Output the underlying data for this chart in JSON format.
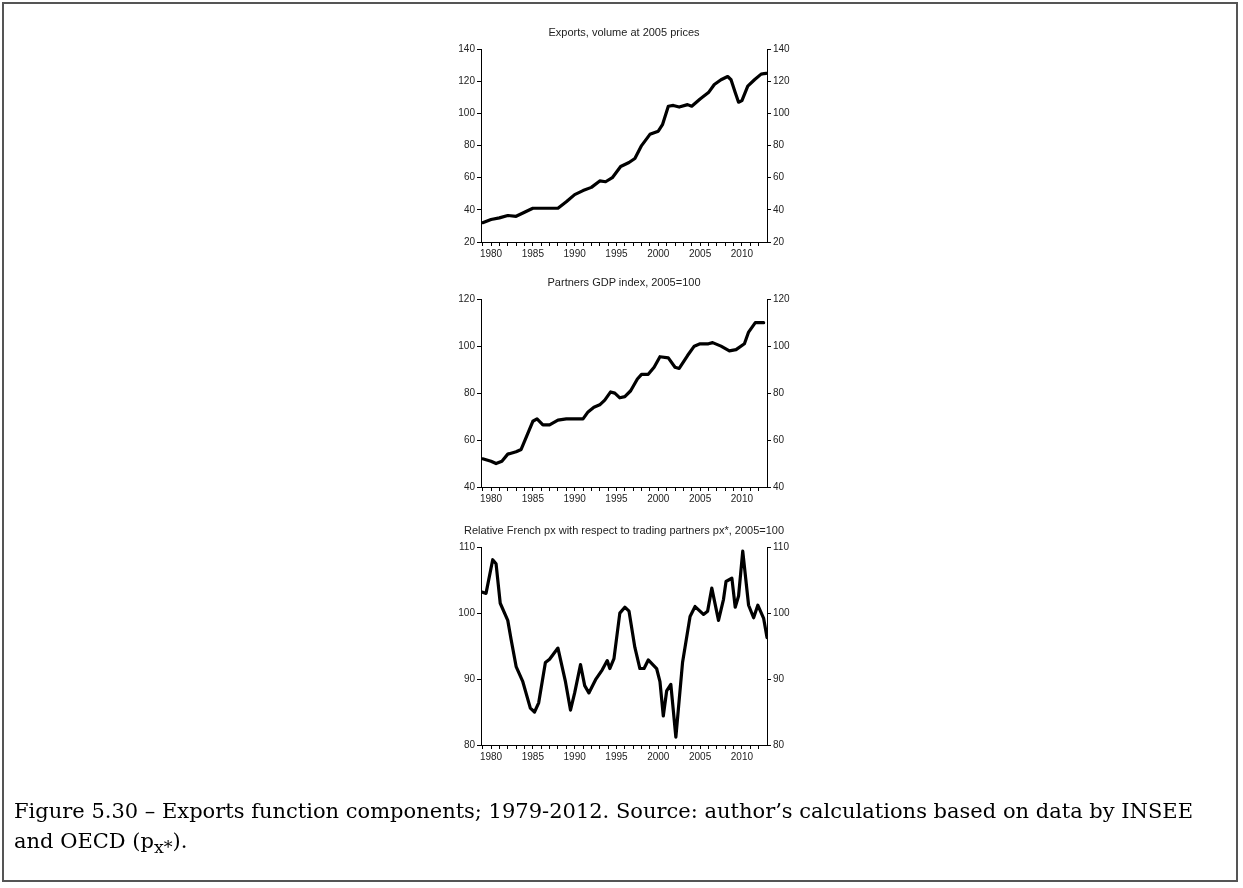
{
  "chart_data": [
    {
      "type": "line",
      "title": "Exports, volume at 2005 prices",
      "x": [
        1979,
        1980,
        1981,
        1982,
        1983,
        1984,
        1985,
        1986,
        1987,
        1988,
        1989,
        1990,
        1991,
        1992,
        1993,
        1993.7,
        1994.5,
        1995.5,
        1996.5,
        1997.2,
        1998,
        1999,
        2000,
        2000.5,
        2001.2,
        2001.8,
        2002.5,
        2003.5,
        2004,
        2005,
        2006,
        2006.7,
        2007.5,
        2008.3,
        2008.7,
        2009.2,
        2009.6,
        2010,
        2010.7,
        2011.5,
        2012.3,
        2012.9
      ],
      "series": [
        {
          "color": "#000000",
          "values": [
            32,
            34,
            35,
            36.5,
            36,
            38.5,
            41,
            41,
            41,
            41,
            45,
            49.5,
            52,
            54,
            58,
            57.5,
            60,
            67,
            69.5,
            72,
            80,
            87,
            89,
            93,
            104.5,
            105,
            104,
            105.5,
            104.5,
            109,
            113,
            118,
            121,
            123,
            121,
            113,
            107,
            108,
            117,
            121,
            124.5,
            125
          ]
        }
      ],
      "xlim": [
        1978.8,
        2013
      ],
      "xticks": [
        {
          "value": 1979,
          "label": null
        },
        1980,
        {
          "value": 1981,
          "label": null
        },
        {
          "value": 1982,
          "label": null
        },
        {
          "value": 1983,
          "label": null
        },
        {
          "value": 1984,
          "label": null
        },
        1985,
        {
          "value": 1986,
          "label": null
        },
        {
          "value": 1987,
          "label": null
        },
        {
          "value": 1988,
          "label": null
        },
        {
          "value": 1989,
          "label": null
        },
        1990,
        {
          "value": 1991,
          "label": null
        },
        {
          "value": 1992,
          "label": null
        },
        {
          "value": 1993,
          "label": null
        },
        {
          "value": 1994,
          "label": null
        },
        1995,
        {
          "value": 1996,
          "label": null
        },
        {
          "value": 1997,
          "label": null
        },
        {
          "value": 1998,
          "label": null
        },
        {
          "value": 1999,
          "label": null
        },
        2000,
        {
          "value": 2001,
          "label": null
        },
        {
          "value": 2002,
          "label": null
        },
        {
          "value": 2003,
          "label": null
        },
        {
          "value": 2004,
          "label": null
        },
        2005,
        {
          "value": 2006,
          "label": null
        },
        {
          "value": 2007,
          "label": null
        },
        {
          "value": 2008,
          "label": null
        },
        {
          "value": 2009,
          "label": null
        },
        2010,
        {
          "value": 2011,
          "label": null
        },
        {
          "value": 2012,
          "label": null
        }
      ],
      "ylim": [
        20,
        140
      ],
      "yticks": [
        20,
        40,
        60,
        80,
        100,
        120,
        140
      ],
      "y2lim": [
        20,
        140
      ],
      "y2ticks": [
        20,
        40,
        60,
        80,
        100,
        120,
        140
      ],
      "grid": false
    },
    {
      "type": "line",
      "title": "Partners GDP index, 2005=100",
      "x": [
        1979,
        1980,
        1980.6,
        1981.3,
        1982,
        1983,
        1983.6,
        1984.3,
        1985,
        1985.5,
        1986.2,
        1987,
        1988,
        1989,
        1990,
        1991,
        1991.6,
        1992.3,
        1993,
        1993.6,
        1994.3,
        1994.8,
        1995.4,
        1996,
        1996.7,
        1997.5,
        1998,
        1998.8,
        1999.5,
        2000.2,
        2001.2,
        2002,
        2002.5,
        2003.5,
        2004.3,
        2005,
        2006,
        2006.5,
        2007.5,
        2008.5,
        2009.3,
        2010.3,
        2010.8,
        2011.6,
        2012.6
      ],
      "series": [
        {
          "color": "#000000",
          "values": [
            52,
            51,
            50,
            51,
            54,
            55,
            56,
            62,
            68,
            69,
            66.5,
            66.5,
            68.5,
            69,
            69,
            69,
            72,
            74,
            75,
            77,
            80.5,
            80,
            78,
            78.5,
            81,
            86,
            88,
            88,
            91,
            95.5,
            95,
            91,
            90.5,
            96,
            100,
            101,
            101,
            101.5,
            100,
            98,
            98.5,
            101,
            106,
            110,
            110
          ]
        }
      ],
      "xlim": [
        1978.8,
        2013
      ],
      "xticks": [
        {
          "value": 1979,
          "label": null
        },
        1980,
        {
          "value": 1981,
          "label": null
        },
        {
          "value": 1982,
          "label": null
        },
        {
          "value": 1983,
          "label": null
        },
        {
          "value": 1984,
          "label": null
        },
        1985,
        {
          "value": 1986,
          "label": null
        },
        {
          "value": 1987,
          "label": null
        },
        {
          "value": 1988,
          "label": null
        },
        {
          "value": 1989,
          "label": null
        },
        1990,
        {
          "value": 1991,
          "label": null
        },
        {
          "value": 1992,
          "label": null
        },
        {
          "value": 1993,
          "label": null
        },
        {
          "value": 1994,
          "label": null
        },
        1995,
        {
          "value": 1996,
          "label": null
        },
        {
          "value": 1997,
          "label": null
        },
        {
          "value": 1998,
          "label": null
        },
        {
          "value": 1999,
          "label": null
        },
        2000,
        {
          "value": 2001,
          "label": null
        },
        {
          "value": 2002,
          "label": null
        },
        {
          "value": 2003,
          "label": null
        },
        {
          "value": 2004,
          "label": null
        },
        2005,
        {
          "value": 2006,
          "label": null
        },
        {
          "value": 2007,
          "label": null
        },
        {
          "value": 2008,
          "label": null
        },
        {
          "value": 2009,
          "label": null
        },
        2010,
        {
          "value": 2011,
          "label": null
        },
        {
          "value": 2012,
          "label": null
        }
      ],
      "ylim": [
        40,
        120
      ],
      "yticks": [
        40,
        60,
        80,
        100,
        120
      ],
      "y2lim": [
        40,
        120
      ],
      "y2ticks": [
        40,
        60,
        80,
        100,
        120
      ],
      "grid": false
    },
    {
      "type": "line",
      "title": "Relative French px with respect to trading partners px*, 2005=100",
      "x": [
        1978.9,
        1979.4,
        1980.2,
        1980.6,
        1981.1,
        1982,
        1982.4,
        1983,
        1983.8,
        1984.7,
        1985.2,
        1985.7,
        1986.5,
        1987,
        1988,
        1988.9,
        1989.5,
        1990,
        1990.7,
        1991.2,
        1991.7,
        1992.5,
        1993.3,
        1993.9,
        1994.2,
        1994.7,
        1995.4,
        1996,
        1996.5,
        1997.2,
        1997.8,
        1998.3,
        1998.8,
        1999.8,
        2000.2,
        2000.6,
        2001,
        2001.5,
        2002.1,
        2002.9,
        2003.8,
        2004.4,
        2005.4,
        2005.9,
        2006.4,
        2007.2,
        2007.8,
        2008.1,
        2008.8,
        2009.2,
        2009.6,
        2010.1,
        2010.8,
        2011.4,
        2011.9,
        2012.6,
        2013
      ],
      "series": [
        {
          "color": "#000000",
          "values": [
            103.2,
            103,
            108.1,
            107.5,
            101.5,
            98.9,
            96,
            91.9,
            89.6,
            85.6,
            85,
            86.4,
            92.5,
            93,
            94.7,
            89.6,
            85.3,
            87.9,
            92.2,
            89,
            87.9,
            89.9,
            91.4,
            92.8,
            91.6,
            93.1,
            100,
            100.9,
            100.3,
            94.8,
            91.6,
            91.6,
            92.9,
            91.6,
            89.6,
            84.4,
            88.2,
            89.2,
            81.2,
            92.5,
            99.5,
            101,
            99.8,
            100.3,
            103.8,
            98.9,
            102.1,
            104.8,
            105.3,
            100.9,
            102.6,
            109.4,
            101.2,
            99.3,
            101.2,
            99.2,
            96.3
          ]
        }
      ],
      "xlim": [
        1978.8,
        2013
      ],
      "xticks": [
        {
          "value": 1979,
          "label": null
        },
        1980,
        {
          "value": 1981,
          "label": null
        },
        {
          "value": 1982,
          "label": null
        },
        {
          "value": 1983,
          "label": null
        },
        {
          "value": 1984,
          "label": null
        },
        1985,
        {
          "value": 1986,
          "label": null
        },
        {
          "value": 1987,
          "label": null
        },
        {
          "value": 1988,
          "label": null
        },
        {
          "value": 1989,
          "label": null
        },
        1990,
        {
          "value": 1991,
          "label": null
        },
        {
          "value": 1992,
          "label": null
        },
        {
          "value": 1993,
          "label": null
        },
        {
          "value": 1994,
          "label": null
        },
        1995,
        {
          "value": 1996,
          "label": null
        },
        {
          "value": 1997,
          "label": null
        },
        {
          "value": 1998,
          "label": null
        },
        {
          "value": 1999,
          "label": null
        },
        2000,
        {
          "value": 2001,
          "label": null
        },
        {
          "value": 2002,
          "label": null
        },
        {
          "value": 2003,
          "label": null
        },
        {
          "value": 2004,
          "label": null
        },
        2005,
        {
          "value": 2006,
          "label": null
        },
        {
          "value": 2007,
          "label": null
        },
        {
          "value": 2008,
          "label": null
        },
        {
          "value": 2009,
          "label": null
        },
        2010,
        {
          "value": 2011,
          "label": null
        },
        {
          "value": 2012,
          "label": null
        }
      ],
      "ylim": [
        80,
        110
      ],
      "yticks": [
        80,
        90,
        100,
        110
      ],
      "y2lim": [
        80,
        110
      ],
      "y2ticks": [
        80,
        90,
        100,
        110
      ],
      "grid": false,
      "annotations": [
        "Figure 5.30 – Exports function components; 1979-2012. Source: author’s calculations based on data by INSEE and OECD (p$_{x*}$)."
      ]
    }
  ]
}
